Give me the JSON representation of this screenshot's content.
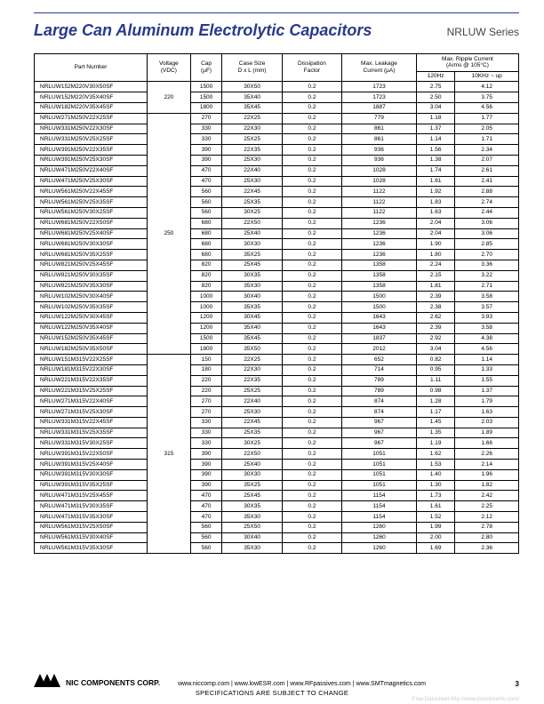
{
  "header": {
    "title": "Large Can Aluminum Electrolytic Capacitors",
    "series": "NRLUW Series"
  },
  "table": {
    "columns": {
      "part": "Part Number",
      "voltage": "Voltage\n(VDC)",
      "cap": "Cap\n(µF)",
      "case": "Case Size\nD x L (mm)",
      "dissipation": "Dissipation\nFactor",
      "leakage": "Max. Leakage\nCurrent (µA)",
      "ripple_top": "Max. Ripple Current\n(Arms @ 105°C)",
      "ripple_120": "120Hz",
      "ripple_10k": "10KHz ~ up"
    },
    "groups": [
      {
        "voltage": "220",
        "rows": [
          {
            "pn": "NRLUW152M220V30X50SF",
            "cap": "1500",
            "case": "30X50",
            "df": "0.2",
            "lk": "1723",
            "r1": "2.75",
            "r2": "4.12"
          },
          {
            "pn": "NRLUW152M220V35X40SF",
            "cap": "1500",
            "case": "35X40",
            "df": "0.2",
            "lk": "1723",
            "r1": "2.50",
            "r2": "3.75"
          },
          {
            "pn": "NRLUW182M220V35X45SF",
            "cap": "1800",
            "case": "35X45",
            "df": "0.2",
            "lk": "1887",
            "r1": "3.04",
            "r2": "4.56"
          }
        ]
      },
      {
        "voltage": "250",
        "rows": [
          {
            "pn": "NRLUW271M250V22X25SF",
            "cap": "270",
            "case": "22X25",
            "df": "0.2",
            "lk": "779",
            "r1": "1.18",
            "r2": "1.77"
          },
          {
            "pn": "NRLUW331M250V22X30SF",
            "cap": "330",
            "case": "22X30",
            "df": "0.2",
            "lk": "861",
            "r1": "1.37",
            "r2": "2.05"
          },
          {
            "pn": "NRLUW331M250V25X25SF",
            "cap": "330",
            "case": "25X25",
            "df": "0.2",
            "lk": "861",
            "r1": "1.14",
            "r2": "1.71"
          },
          {
            "pn": "NRLUW391M250V22X35SF",
            "cap": "390",
            "case": "22X35",
            "df": "0.2",
            "lk": "936",
            "r1": "1.56",
            "r2": "2.34"
          },
          {
            "pn": "NRLUW391M250V25X30SF",
            "cap": "390",
            "case": "25X30",
            "df": "0.2",
            "lk": "936",
            "r1": "1.38",
            "r2": "2.07"
          },
          {
            "pn": "NRLUW471M250V22X40SF",
            "cap": "470",
            "case": "22X40",
            "df": "0.2",
            "lk": "1028",
            "r1": "1.74",
            "r2": "2.61"
          },
          {
            "pn": "NRLUW471M250V25X30SF",
            "cap": "470",
            "case": "25X30",
            "df": "0.2",
            "lk": "1028",
            "r1": "1.61",
            "r2": "2.41"
          },
          {
            "pn": "NRLUW561M250V22X45SF",
            "cap": "560",
            "case": "22X45",
            "df": "0.2",
            "lk": "1122",
            "r1": "1.92",
            "r2": "2.88"
          },
          {
            "pn": "NRLUW561M250V25X35SF",
            "cap": "560",
            "case": "25X35",
            "df": "0.2",
            "lk": "1122",
            "r1": "1.83",
            "r2": "2.74"
          },
          {
            "pn": "NRLUW561M250V30X25SF",
            "cap": "560",
            "case": "30X25",
            "df": "0.2",
            "lk": "1122",
            "r1": "1.63",
            "r2": "2.44"
          },
          {
            "pn": "NRLUW681M250V22X50SF",
            "cap": "680",
            "case": "22X50",
            "df": "0.2",
            "lk": "1236",
            "r1": "2.04",
            "r2": "3.06"
          },
          {
            "pn": "NRLUW681M250V25X40SF",
            "cap": "680",
            "case": "25X40",
            "df": "0.2",
            "lk": "1236",
            "r1": "2.04",
            "r2": "3.06"
          },
          {
            "pn": "NRLUW681M250V30X30SF",
            "cap": "680",
            "case": "30X30",
            "df": "0.2",
            "lk": "1236",
            "r1": "1.90",
            "r2": "2.85"
          },
          {
            "pn": "NRLUW681M250V35X25SF",
            "cap": "680",
            "case": "35X25",
            "df": "0.2",
            "lk": "1236",
            "r1": "1.80",
            "r2": "2.70"
          },
          {
            "pn": "NRLUW821M250V25X45SF",
            "cap": "820",
            "case": "25X45",
            "df": "0.2",
            "lk": "1358",
            "r1": "2.24",
            "r2": "3.36"
          },
          {
            "pn": "NRLUW821M250V30X35SF",
            "cap": "820",
            "case": "30X35",
            "df": "0.2",
            "lk": "1358",
            "r1": "2.15",
            "r2": "3.22"
          },
          {
            "pn": "NRLUW821M250V35X30SF",
            "cap": "820",
            "case": "35X30",
            "df": "0.2",
            "lk": "1358",
            "r1": "1.81",
            "r2": "2.71"
          },
          {
            "pn": "NRLUW102M250V30X40SF",
            "cap": "1000",
            "case": "30X40",
            "df": "0.2",
            "lk": "1500",
            "r1": "2.39",
            "r2": "3.58"
          },
          {
            "pn": "NRLUW102M250V35X35SF",
            "cap": "1000",
            "case": "35X35",
            "df": "0.2",
            "lk": "1500",
            "r1": "2.38",
            "r2": "3.57"
          },
          {
            "pn": "NRLUW122M250V30X45SF",
            "cap": "1200",
            "case": "30X45",
            "df": "0.2",
            "lk": "1643",
            "r1": "2.62",
            "r2": "3.93"
          },
          {
            "pn": "NRLUW122M250V35X40SF",
            "cap": "1200",
            "case": "35X40",
            "df": "0.2",
            "lk": "1643",
            "r1": "2.39",
            "r2": "3.58"
          },
          {
            "pn": "NRLUW152M250V35X45SF",
            "cap": "1500",
            "case": "35X45",
            "df": "0.2",
            "lk": "1837",
            "r1": "2.92",
            "r2": "4.38"
          },
          {
            "pn": "NRLUW182M250V35X50SF",
            "cap": "1800",
            "case": "35X50",
            "df": "0.2",
            "lk": "2012",
            "r1": "3.04",
            "r2": "4.56"
          }
        ]
      },
      {
        "voltage": "315",
        "rows": [
          {
            "pn": "NRLUW151M315V22X25SF",
            "cap": "150",
            "case": "22X25",
            "df": "0.2",
            "lk": "652",
            "r1": "0.82",
            "r2": "1.14"
          },
          {
            "pn": "NRLUW181M315V22X30SF",
            "cap": "180",
            "case": "22X30",
            "df": "0.2",
            "lk": "714",
            "r1": "0.95",
            "r2": "1.33"
          },
          {
            "pn": "NRLUW221M315V22X35SF",
            "cap": "220",
            "case": "22X35",
            "df": "0.2",
            "lk": "789",
            "r1": "1.11",
            "r2": "1.55"
          },
          {
            "pn": "NRLUW221M315V25X25SF",
            "cap": "220",
            "case": "25X25",
            "df": "0.2",
            "lk": "789",
            "r1": "0.98",
            "r2": "1.37"
          },
          {
            "pn": "NRLUW271M315V22X40SF",
            "cap": "270",
            "case": "22X40",
            "df": "0.2",
            "lk": "874",
            "r1": "1.28",
            "r2": "1.79"
          },
          {
            "pn": "NRLUW271M315V25X30SF",
            "cap": "270",
            "case": "25X30",
            "df": "0.2",
            "lk": "874",
            "r1": "1.17",
            "r2": "1.63"
          },
          {
            "pn": "NRLUW331M315V22X45SF",
            "cap": "330",
            "case": "22X45",
            "df": "0.2",
            "lk": "967",
            "r1": "1.45",
            "r2": "2.03"
          },
          {
            "pn": "NRLUW331M315V25X35SF",
            "cap": "330",
            "case": "25X35",
            "df": "0.2",
            "lk": "967",
            "r1": "1.35",
            "r2": "1.89"
          },
          {
            "pn": "NRLUW331M315V30X25SF",
            "cap": "330",
            "case": "30X25",
            "df": "0.2",
            "lk": "967",
            "r1": "1.19",
            "r2": "1.66"
          },
          {
            "pn": "NRLUW391M315V22X50SF",
            "cap": "390",
            "case": "22X50",
            "df": "0.2",
            "lk": "1051",
            "r1": "1.62",
            "r2": "2.26"
          },
          {
            "pn": "NRLUW391M315V25X40SF",
            "cap": "390",
            "case": "25X40",
            "df": "0.2",
            "lk": "1051",
            "r1": "1.53",
            "r2": "2.14"
          },
          {
            "pn": "NRLUW391M315V30X30SF",
            "cap": "390",
            "case": "30X30",
            "df": "0.2",
            "lk": "1051",
            "r1": "1.40",
            "r2": "1.96"
          },
          {
            "pn": "NRLUW391M315V35X25SF",
            "cap": "390",
            "case": "35X25",
            "df": "0.2",
            "lk": "1051",
            "r1": "1.30",
            "r2": "1.82"
          },
          {
            "pn": "NRLUW471M315V25X45SF",
            "cap": "470",
            "case": "25X45",
            "df": "0.2",
            "lk": "1154",
            "r1": "1.73",
            "r2": "2.42"
          },
          {
            "pn": "NRLUW471M315V30X35SF",
            "cap": "470",
            "case": "30X35",
            "df": "0.2",
            "lk": "1154",
            "r1": "1.61",
            "r2": "2.25"
          },
          {
            "pn": "NRLUW471M315V35X30SF",
            "cap": "470",
            "case": "35X30",
            "df": "0.2",
            "lk": "1154",
            "r1": "1.52",
            "r2": "2.12"
          },
          {
            "pn": "NRLUW561M315V25X50SF",
            "cap": "560",
            "case": "25X50",
            "df": "0.2",
            "lk": "1260",
            "r1": "1.99",
            "r2": "2.78"
          },
          {
            "pn": "NRLUW561M315V30X40SF",
            "cap": "560",
            "case": "30X40",
            "df": "0.2",
            "lk": "1260",
            "r1": "2.00",
            "r2": "2.80"
          },
          {
            "pn": "NRLUW561M315V35X30SF",
            "cap": "560",
            "case": "35X30",
            "df": "0.2",
            "lk": "1260",
            "r1": "1.69",
            "r2": "2.36"
          }
        ]
      }
    ]
  },
  "footer": {
    "corp": "NIC COMPONENTS CORP.",
    "links": "www.niccomp.com  |  www.lowESR.com  |  www.RFpassives.com  |  www.SMTmagnetics.com",
    "spec": "SPECIFICATIONS ARE SUBJECT TO CHANGE",
    "watermark": "Free Datasheet http://www.datasheet4u.com/",
    "page": "3"
  }
}
